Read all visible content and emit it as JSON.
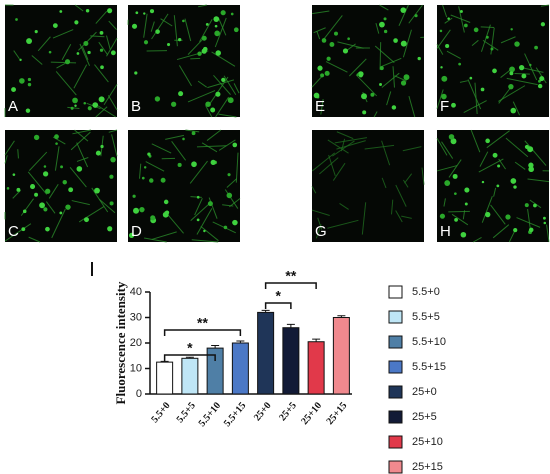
{
  "panels": [
    {
      "label": "A"
    },
    {
      "label": "B"
    },
    {
      "label": "E"
    },
    {
      "label": "F"
    },
    {
      "label": "C"
    },
    {
      "label": "D"
    },
    {
      "label": "G"
    },
    {
      "label": "H"
    }
  ],
  "chart_data": {
    "type": "bar",
    "y_label": "Fluorescence intensity",
    "categories": [
      "5.5+0",
      "5.5+5",
      "5.5+10",
      "5.5+15",
      "25+0",
      "25+5",
      "25+10",
      "25+15"
    ],
    "values": [
      12.5,
      14,
      18,
      20,
      32,
      26,
      20.5,
      30
    ],
    "errors": [
      0.3,
      0.4,
      1,
      0.8,
      0.8,
      1.3,
      1,
      0.7
    ],
    "colors": [
      "#ffffff",
      "#bfe6f6",
      "#4f7fa6",
      "#4b78c6",
      "#1f3558",
      "#121a36",
      "#e1394a",
      "#f0898e"
    ],
    "ylim": [
      0,
      40
    ],
    "yticks": [
      0,
      10,
      20,
      30,
      40
    ],
    "annotations": [
      {
        "label": "*",
        "from": 0,
        "to": 2
      },
      {
        "label": "**",
        "from": 0,
        "to": 3
      },
      {
        "label": "*",
        "from": 4,
        "to": 5
      },
      {
        "label": "**",
        "from": 4,
        "to": 6
      }
    ]
  }
}
